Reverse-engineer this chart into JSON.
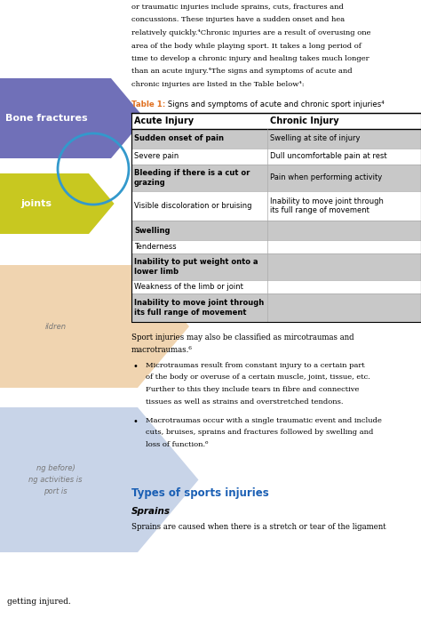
{
  "bg_color": "#ffffff",
  "figsize": [
    4.74,
    7.05
  ],
  "dpi": 100,
  "top_text_lines": [
    "or traumatic injuries include sprains, cuts, fractures and",
    "concussions. These injuries have a sudden onset and hea",
    "relatively quickly.⁴Chronic injuries are a result of overusing one",
    "area of the body while playing sport. It takes a long period of",
    "time to develop a chronic injury and healing takes much longer",
    "than an acute injury.⁴The signs and symptoms of acute and",
    "chronic injuries are listed in the Table below⁴:"
  ],
  "arrow1_color": "#7070b8",
  "arrow1_label": "Bone fractures",
  "arrow1_label_color": "#ffffff",
  "arrow2_color": "#c8c820",
  "arrow2_label": "joints",
  "arrow2_label_color": "#ffffff",
  "arrow3_color": "#f0d4b0",
  "arrow3_label": "ildren",
  "arrow3_label_color": "#777777",
  "arrow4_color": "#c8d4e8",
  "arrow4_label_lines": [
    "port is",
    "ng activities is",
    "ng before)"
  ],
  "arrow4_label_color": "#777777",
  "circle_color": "#3399cc",
  "table_title_orange": "Table 1:",
  "table_title_rest": " Signs and symptoms of acute and chronic sport injuries⁴",
  "col_header1": "Acute Injury",
  "col_header2": "Chronic Injury",
  "rows": [
    {
      "acute": "Sudden onset of pain",
      "chronic": "Swelling at site of injury",
      "shade": true
    },
    {
      "acute": "Severe pain",
      "chronic": "Dull uncomfortable pain at rest",
      "shade": false
    },
    {
      "acute": "Bleeding if there is a cut or\ngrazing",
      "chronic": "Pain when performing activity",
      "shade": true
    },
    {
      "acute": "Visible discoloration or bruising",
      "chronic": "Inability to move joint through\nits full range of movement",
      "shade": false
    },
    {
      "acute": "Swelling",
      "chronic": "",
      "shade": true
    },
    {
      "acute": "Tenderness",
      "chronic": "",
      "shade": false
    },
    {
      "acute": "Inability to put weight onto a\nlower limb",
      "chronic": "",
      "shade": true
    },
    {
      "acute": "Weakness of the limb or joint",
      "chronic": "",
      "shade": false
    },
    {
      "acute": "Inability to move joint through\nits full range of movement",
      "chronic": "",
      "shade": true
    }
  ],
  "shade_color": "#c8c8c8",
  "body1": "Sport injuries may also be classified as mircotraumas and",
  "body2": "macrotraumas.⁶",
  "bullet1_lines": [
    "Microtraumas result from constant injury to a certain part",
    "of the body or overuse of a certain muscle, joint, tissue, etc.",
    "Further to this they include tears in fibre and connective",
    "tissues as well as strains and overstretched tendons."
  ],
  "bullet2_lines": [
    "Macrotraumas occur with a single traumatic event and include",
    "cuts, bruises, sprains and fractures followed by swelling and",
    "loss of function.⁶"
  ],
  "section_title": "Types of sports injuries",
  "section_title_color": "#1a5fb4",
  "subsection": "Sprains",
  "sprains_text": "Sprains are caused when there is a stretch or tear of the ligament",
  "bottom_left": "getting injured."
}
